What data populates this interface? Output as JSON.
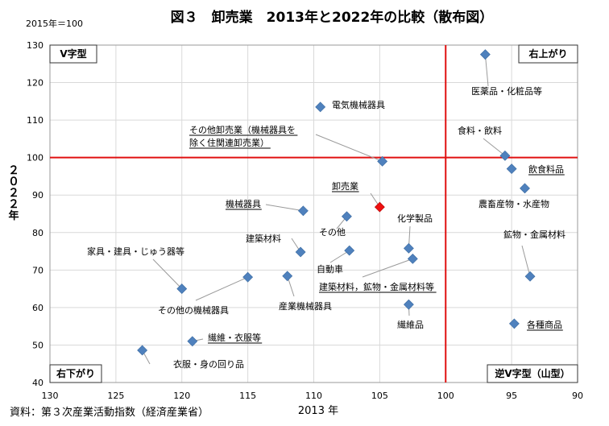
{
  "chart_data": {
    "type": "scatter",
    "title": "図３　卸売業　2013年と2022年の比較（散布図）",
    "base_note": "2015年＝100",
    "xlabel": "2013 年",
    "ylabel": "２０２２年",
    "source": "資料：第３次産業活動指数（経済産業省）",
    "xlim": [
      130,
      90
    ],
    "ylim": [
      40,
      130
    ],
    "x_reversed": true,
    "grid": true,
    "xticks": [
      130,
      125,
      120,
      115,
      110,
      105,
      100,
      95,
      90
    ],
    "yticks": [
      40,
      50,
      60,
      70,
      80,
      90,
      100,
      110,
      120,
      130
    ],
    "reference_lines": {
      "x": 100,
      "y": 100,
      "color": "#e01010"
    },
    "quadrant_labels": {
      "top_left": "V字型",
      "top_right": "右上がり",
      "bottom_left": "右下がり",
      "bottom_right": "逆V字型（山型）"
    },
    "marker_color": "#4f81bd",
    "highlight_color": "#ee1111",
    "points": [
      {
        "label": "医薬品・化粧品等",
        "x": 97.0,
        "y": 127.5,
        "underline": false
      },
      {
        "label": "電気機械器具",
        "x": 109.5,
        "y": 113.5,
        "underline": false
      },
      {
        "label": "その他卸売業（機械器具を除く住関連卸売業）",
        "label_lines": [
          "その他卸売業（機械器具を",
          "除く住関連卸売業）"
        ],
        "x": 104.8,
        "y": 99.0,
        "underline": true
      },
      {
        "label": "食料・飲料",
        "x": 95.5,
        "y": 100.5,
        "underline": false
      },
      {
        "label": "飲食料品",
        "x": 95.0,
        "y": 97.0,
        "underline": true
      },
      {
        "label": "農畜産物・水産物",
        "x": 94.0,
        "y": 91.8,
        "underline": false
      },
      {
        "label": "卸売業",
        "x": 105.0,
        "y": 86.8,
        "underline": true,
        "highlight": true
      },
      {
        "label": "機械器具",
        "x": 110.8,
        "y": 85.8,
        "underline": true
      },
      {
        "label": "その他",
        "x": 107.5,
        "y": 84.3,
        "underline": false
      },
      {
        "label": "建築材料",
        "x": 111.0,
        "y": 74.8,
        "underline": false
      },
      {
        "label": "自動車",
        "x": 107.3,
        "y": 75.2,
        "underline": false
      },
      {
        "label": "化学製品",
        "x": 102.8,
        "y": 75.8,
        "underline": false
      },
      {
        "label": "建築材料，鉱物・金属材料等",
        "x": 102.5,
        "y": 73.0,
        "underline": true
      },
      {
        "label": "鉱物・金属材料",
        "x": 93.6,
        "y": 68.3,
        "underline": false
      },
      {
        "label": "家具・建具・じゅう器等",
        "x": 120.0,
        "y": 65.0,
        "underline": false
      },
      {
        "label": "その他の機械器具",
        "x": 115.0,
        "y": 68.1,
        "underline": false
      },
      {
        "label": "産業機械器具",
        "x": 112.0,
        "y": 68.4,
        "underline": false
      },
      {
        "label": "繊維品",
        "x": 102.8,
        "y": 60.8,
        "underline": false
      },
      {
        "label": "繊維・衣服等",
        "x": 119.2,
        "y": 51.0,
        "underline": true
      },
      {
        "label": "衣服・身の回り品",
        "x": 123.0,
        "y": 48.6,
        "underline": false
      },
      {
        "label": "各種商品",
        "x": 94.8,
        "y": 55.7,
        "underline": true
      }
    ]
  }
}
